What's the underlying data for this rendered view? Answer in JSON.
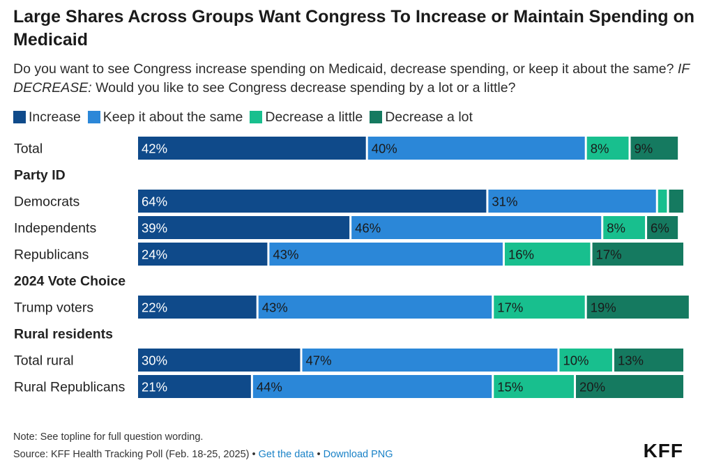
{
  "title": "Large Shares Across Groups Want Congress To Increase or Maintain Spending on Medicaid",
  "subtitle": {
    "question": "Do you want to see Congress increase spending on Medicaid, decrease spending, or keep it about the same?",
    "followup_prefix": "IF DECREASE:",
    "followup": "Would you like to see Congress decrease spending by a lot or a little?"
  },
  "footer": {
    "note": "Note: See topline for full question wording.",
    "source": "Source: KFF Health Tracking Poll (Feb. 18-25, 2025)",
    "separator": "•",
    "get_data_link": "Get the data",
    "download_link": "Download PNG",
    "logo": "KFF"
  },
  "chart_data": {
    "type": "bar",
    "orientation": "horizontal",
    "stacked": true,
    "series": [
      {
        "name": "Increase",
        "color": "#0f4a8a"
      },
      {
        "name": "Keep it about the same",
        "color": "#2b87d8"
      },
      {
        "name": "Decrease a little",
        "color": "#18bf8e"
      },
      {
        "name": "Decrease a lot",
        "color": "#157a60"
      }
    ],
    "rows": [
      {
        "kind": "bar",
        "label": "Total",
        "values": [
          42,
          40,
          8,
          9
        ],
        "labels": [
          "42%",
          "40%",
          "8%",
          "9%"
        ]
      },
      {
        "kind": "header",
        "label": "Party ID"
      },
      {
        "kind": "bar",
        "label": "Democrats",
        "values": [
          64,
          31,
          2,
          3
        ],
        "labels": [
          "64%",
          "31%",
          "",
          ""
        ]
      },
      {
        "kind": "bar",
        "label": "Independents",
        "values": [
          39,
          46,
          8,
          6
        ],
        "labels": [
          "39%",
          "46%",
          "8%",
          "6%"
        ]
      },
      {
        "kind": "bar",
        "label": "Republicans",
        "values": [
          24,
          43,
          16,
          17
        ],
        "labels": [
          "24%",
          "43%",
          "16%",
          "17%"
        ]
      },
      {
        "kind": "header",
        "label": "2024 Vote Choice"
      },
      {
        "kind": "bar",
        "label": "Trump voters",
        "values": [
          22,
          43,
          17,
          19
        ],
        "labels": [
          "22%",
          "43%",
          "17%",
          "19%"
        ]
      },
      {
        "kind": "header",
        "label": "Rural residents"
      },
      {
        "kind": "bar",
        "label": "Total rural",
        "values": [
          30,
          47,
          10,
          13
        ],
        "labels": [
          "30%",
          "47%",
          "10%",
          "13%"
        ]
      },
      {
        "kind": "bar",
        "label": "Rural Republicans",
        "values": [
          21,
          44,
          15,
          20
        ],
        "labels": [
          "21%",
          "44%",
          "15%",
          "20%"
        ]
      }
    ],
    "label_text_color": "#1a1a1a",
    "label_text_color_dark": "#ffffff"
  }
}
